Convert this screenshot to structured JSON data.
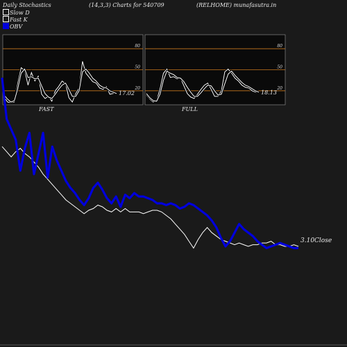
{
  "header": {
    "left": "Daily Stochastics",
    "middle": "(14,3,3) Charts for 540709",
    "right": "(RELHOME) munafasutra.in"
  },
  "legend": [
    {
      "label": "Slow  D",
      "color": "#ffffff"
    },
    {
      "label": "Fast K",
      "color": "#ffffff"
    },
    {
      "label": "OBV",
      "color": "#0000dd"
    }
  ],
  "colors": {
    "background": "#1a1a1a",
    "panel": "#0a0a0a",
    "level_line": "#c8781e",
    "stoch": "#ffffff",
    "obv": "#0000dd",
    "close": "#ffffff"
  },
  "chart_data": [
    {
      "type": "line",
      "title": "FAST",
      "ylim": [
        0,
        100
      ],
      "yticks": [
        "20",
        "50",
        "80"
      ],
      "levels": [
        20,
        50,
        80
      ],
      "last_value_label": "17.02",
      "series": [
        {
          "name": "Fast K",
          "values": [
            11,
            4,
            3,
            4,
            31,
            53,
            49,
            28,
            46,
            34,
            41,
            15,
            9,
            12,
            5,
            20,
            26,
            34,
            30,
            10,
            4,
            16,
            24,
            62,
            45,
            39,
            33,
            31,
            24,
            22,
            26,
            15,
            16,
            17
          ]
        },
        {
          "name": "Slow D",
          "values": [
            14,
            8,
            4,
            6,
            23,
            45,
            51,
            39,
            40,
            37,
            38,
            27,
            16,
            11,
            9,
            15,
            22,
            28,
            31,
            22,
            12,
            12,
            20,
            47,
            51,
            45,
            38,
            34,
            28,
            25,
            24,
            20,
            18,
            16
          ]
        }
      ]
    },
    {
      "type": "line",
      "title": "FULL",
      "ylim": [
        0,
        100
      ],
      "yticks": [
        "20",
        "50",
        "80"
      ],
      "levels": [
        20,
        50,
        80
      ],
      "last_value_label": "18.13",
      "series": [
        {
          "name": "Full K",
          "values": [
            14,
            8,
            4,
            6,
            23,
            45,
            51,
            39,
            40,
            37,
            38,
            27,
            16,
            11,
            9,
            15,
            22,
            28,
            31,
            22,
            12,
            12,
            20,
            47,
            51,
            45,
            38,
            34,
            28,
            25,
            24,
            20,
            18,
            18
          ]
        },
        {
          "name": "Full D",
          "values": [
            16,
            10,
            6,
            5,
            15,
            35,
            48,
            45,
            43,
            39,
            38,
            33,
            25,
            18,
            12,
            12,
            17,
            23,
            28,
            27,
            20,
            14,
            15,
            30,
            44,
            48,
            42,
            37,
            32,
            28,
            26,
            23,
            20,
            18
          ]
        }
      ]
    },
    {
      "type": "line",
      "title": "",
      "ylim": [
        0,
        100
      ],
      "last_value_label": "3.10",
      "last_value_suffix": "Close",
      "x_labels": {
        "left": "FAST",
        "right": "FULL"
      },
      "series": [
        {
          "name": "OBV",
          "values": [
            100,
            76,
            70,
            64,
            46,
            59,
            68,
            44,
            56,
            68,
            42,
            60,
            52,
            46,
            40,
            36,
            33,
            29,
            26,
            30,
            36,
            39,
            35,
            30,
            27,
            31,
            25,
            32,
            30,
            33,
            31,
            31,
            30,
            29,
            27,
            27,
            26,
            27,
            26,
            24,
            25,
            27,
            26,
            24,
            22,
            20,
            17,
            13,
            7,
            2,
            5,
            10,
            15,
            12,
            10,
            8,
            5,
            3,
            1,
            2,
            3,
            4,
            3,
            2,
            1,
            1
          ]
        },
        {
          "name": "Close",
          "values": [
            60,
            57,
            54,
            57,
            59,
            56,
            54,
            51,
            48,
            44,
            41,
            38,
            35,
            32,
            29,
            27,
            25,
            23,
            21,
            23,
            24,
            26,
            25,
            23,
            22,
            24,
            22,
            24,
            22,
            22,
            22,
            21,
            22,
            23,
            23,
            22,
            20,
            18,
            15,
            12,
            9,
            5,
            1,
            6,
            10,
            13,
            10,
            8,
            6,
            5,
            4,
            3,
            4,
            3,
            2,
            3,
            3,
            4,
            4,
            5,
            3,
            3,
            2,
            2,
            3,
            2
          ]
        }
      ]
    }
  ]
}
